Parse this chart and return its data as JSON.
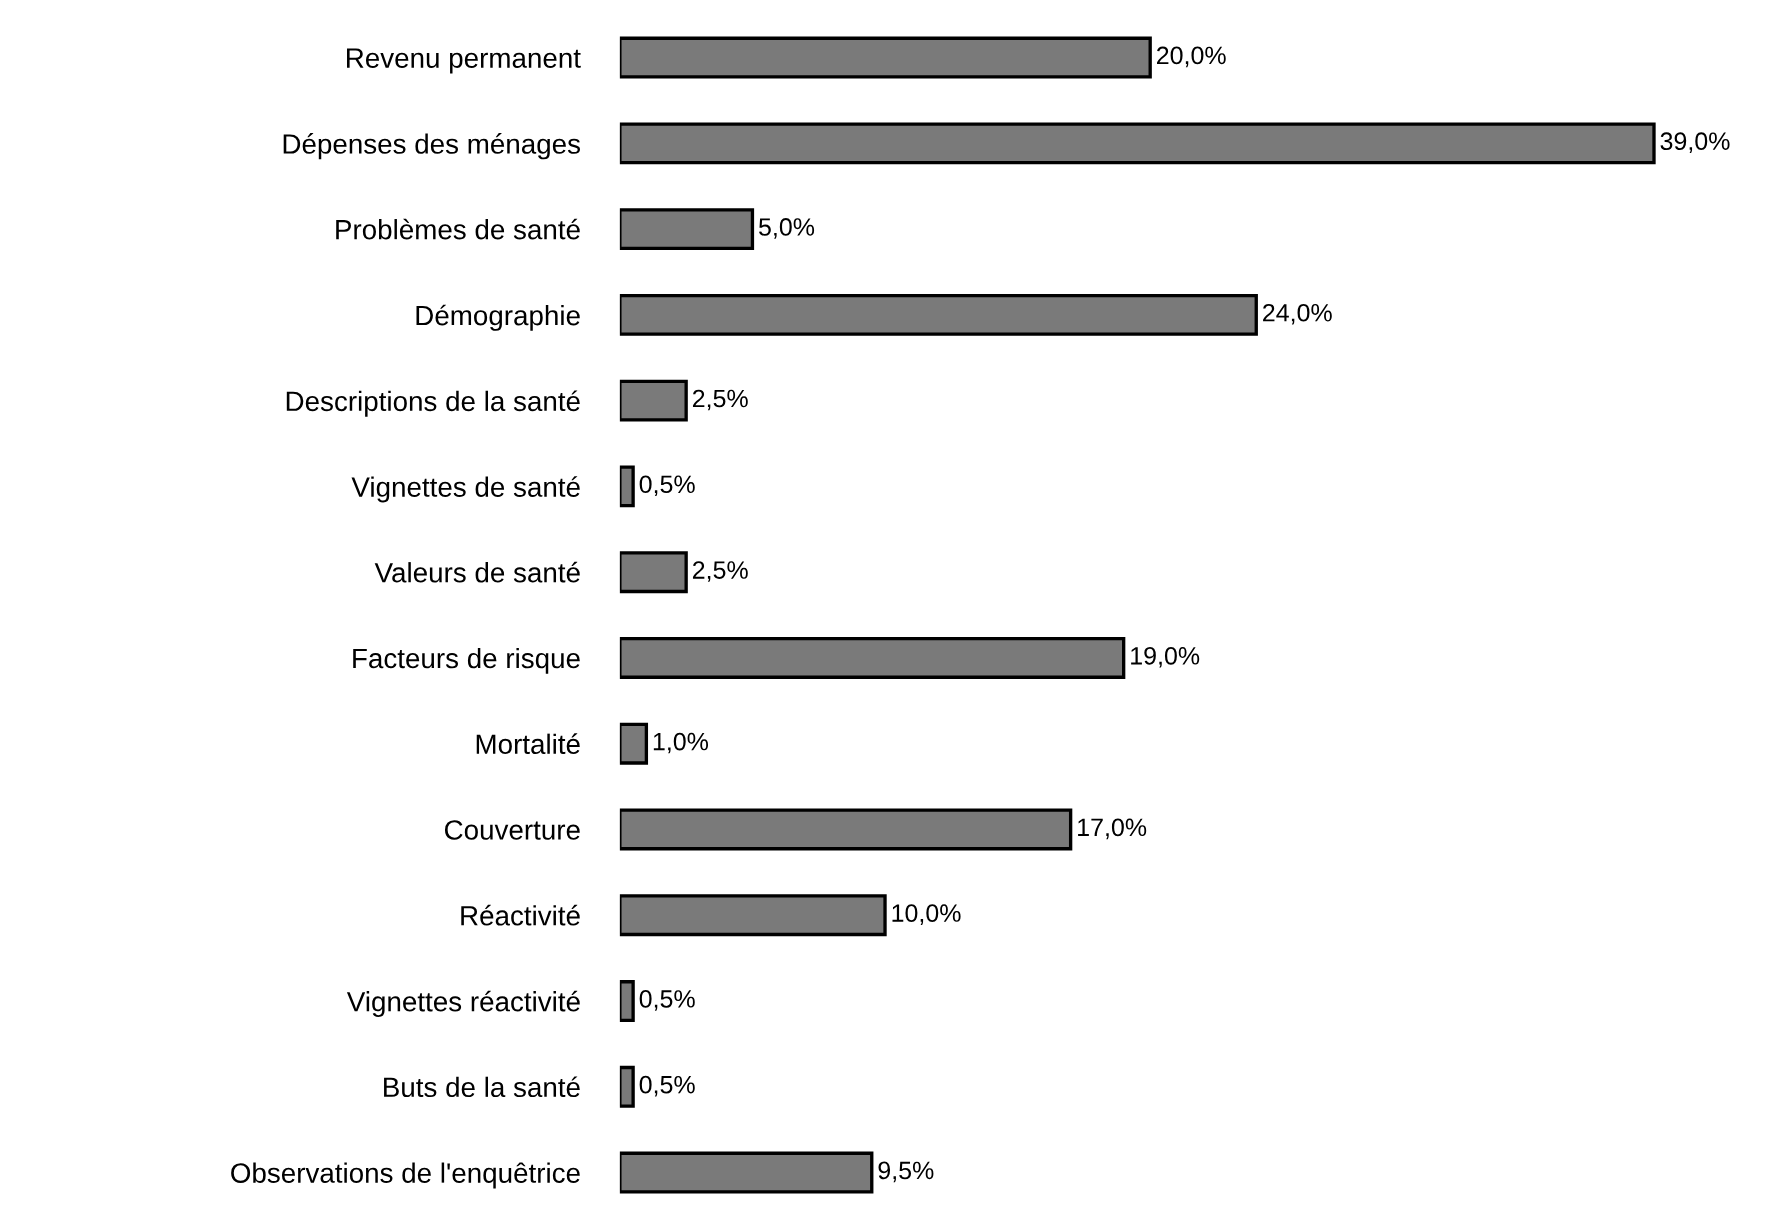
{
  "chart_data": {
    "type": "bar",
    "orientation": "horizontal",
    "color": "#7a7a7a",
    "categories": [
      "Revenu permanent",
      "Dépenses des ménages",
      "Problèmes de santé",
      "Démographie",
      "Descriptions de la santé",
      "Vignettes de santé",
      "Valeurs de santé",
      "Facteurs de risque",
      "Mortalité",
      "Couverture",
      "Réactivité",
      "Vignettes réactivité",
      "Buts de la santé",
      "Observations de l'enquêtrice"
    ],
    "values": [
      20.0,
      39.0,
      5.0,
      24.0,
      2.5,
      0.5,
      2.5,
      19.0,
      1.0,
      17.0,
      10.0,
      0.5,
      0.5,
      9.5
    ],
    "value_labels": [
      "20,0%",
      "39,0%",
      "5,0%",
      "24,0%",
      "2,5%",
      "0,5%",
      "2,5%",
      "19,0%",
      "1,0%",
      "17,0%",
      "10,0%",
      "0,5%",
      "0,5%",
      "9,5%"
    ],
    "legend": false,
    "grid": false
  }
}
